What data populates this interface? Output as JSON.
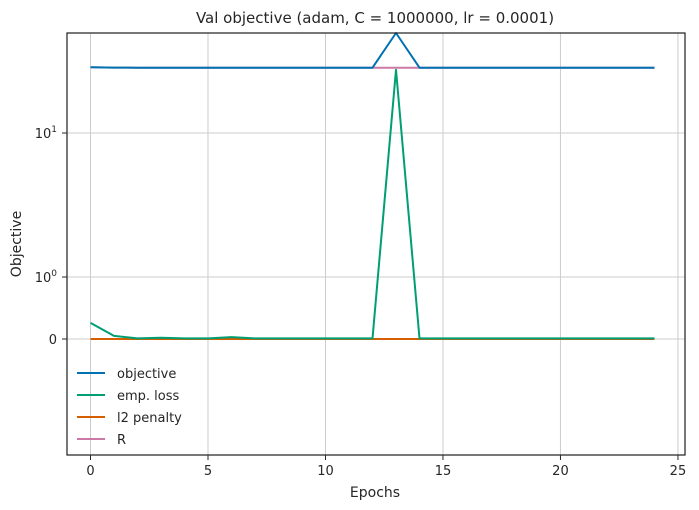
{
  "chart_data": {
    "type": "line",
    "title": "Val objective (adam, C = 1000000, lr = 0.0001)",
    "xlabel": "Epochs",
    "ylabel": "Objective",
    "xlim": [
      -1,
      25.3
    ],
    "x_ticks": [
      0,
      5,
      10,
      15,
      20,
      25
    ],
    "y_ticks": [
      {
        "label": "10",
        "sup": "1"
      },
      {
        "label": "10",
        "sup": "0"
      },
      {
        "label": "0",
        "sup": ""
      }
    ],
    "yscale": "symlog",
    "grid": true,
    "legend_position": "lower-left",
    "x": [
      0,
      1,
      2,
      3,
      4,
      5,
      6,
      7,
      8,
      9,
      10,
      11,
      12,
      13,
      14,
      15,
      16,
      17,
      18,
      19,
      20,
      21,
      22,
      23,
      24
    ],
    "series": [
      {
        "name": "objective",
        "color": "#0072b2",
        "values": [
          38.0,
          37.7,
          37.6,
          37.6,
          37.6,
          37.6,
          37.6,
          37.6,
          37.6,
          37.6,
          37.6,
          37.6,
          37.6,
          76.0,
          37.6,
          37.6,
          37.6,
          37.6,
          37.6,
          37.6,
          37.6,
          37.6,
          37.6,
          37.6,
          37.5
        ]
      },
      {
        "name": "emp. loss",
        "color": "#009e73",
        "values": [
          0.26,
          0.05,
          0.01,
          0.02,
          0.01,
          0.01,
          0.03,
          0.01,
          0.01,
          0.01,
          0.01,
          0.01,
          0.01,
          36.0,
          0.01,
          0.01,
          0.01,
          0.01,
          0.01,
          0.01,
          0.01,
          0.01,
          0.01,
          0.01,
          0.01
        ]
      },
      {
        "name": "l2 penalty",
        "color": "#d55e00",
        "values": [
          0.0,
          0.0,
          0.0,
          0.0,
          0.0,
          0.0,
          0.0,
          0.0,
          0.0,
          0.0,
          0.0,
          0.0,
          0.0,
          0.0,
          0.0,
          0.0,
          0.0,
          0.0,
          0.0,
          0.0,
          0.0,
          0.0,
          0.0,
          0.0,
          0.0
        ]
      },
      {
        "name": "R",
        "color": "#cc79a7",
        "values": [
          38.0,
          37.7,
          37.6,
          37.6,
          37.6,
          37.6,
          37.6,
          37.6,
          37.6,
          37.6,
          37.6,
          37.6,
          37.6,
          37.6,
          37.6,
          37.6,
          37.6,
          37.6,
          37.6,
          37.6,
          37.6,
          37.6,
          37.6,
          37.6,
          37.5
        ]
      }
    ]
  }
}
